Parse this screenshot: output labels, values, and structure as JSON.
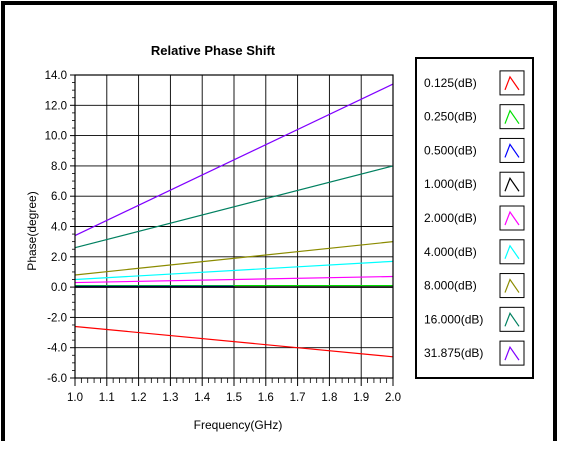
{
  "chart_data": {
    "type": "line",
    "title": "Relative Phase Shift",
    "xlabel": "Frequency(GHz)",
    "ylabel": "Phase(degree)",
    "xlim": [
      1.0,
      2.0
    ],
    "ylim": [
      -6.0,
      14.0
    ],
    "xticks": [
      "1.0",
      "1.1",
      "1.2",
      "1.3",
      "1.4",
      "1.5",
      "1.6",
      "1.7",
      "1.8",
      "1.9",
      "2.0"
    ],
    "yticks": [
      "-6.0",
      "-4.0",
      "-2.0",
      "0.0",
      "2.0",
      "4.0",
      "6.0",
      "8.0",
      "10.0",
      "12.0",
      "14.0"
    ],
    "grid": true,
    "legend_position": "right",
    "series": [
      {
        "name": "0.125(dB)",
        "color": "#ff0000",
        "x": [
          1.0,
          2.0
        ],
        "y": [
          -2.6,
          -4.6
        ]
      },
      {
        "name": "0.250(dB)",
        "color": "#00e000",
        "x": [
          1.0,
          2.0
        ],
        "y": [
          0.1,
          0.1
        ]
      },
      {
        "name": "0.500(dB)",
        "color": "#0000ff",
        "x": [
          1.0,
          1.5
        ],
        "y": [
          0.05,
          0.05
        ]
      },
      {
        "name": "1.000(dB)",
        "color": "#000000",
        "x": [
          1.0,
          2.0
        ],
        "y": [
          0.0,
          0.0
        ]
      },
      {
        "name": "2.000(dB)",
        "color": "#ff00ff",
        "x": [
          1.0,
          2.0
        ],
        "y": [
          0.3,
          0.7
        ]
      },
      {
        "name": "4.000(dB)",
        "color": "#00ffff",
        "x": [
          1.0,
          2.0
        ],
        "y": [
          0.5,
          1.7
        ]
      },
      {
        "name": "8.000(dB)",
        "color": "#8b8b00",
        "x": [
          1.0,
          2.0
        ],
        "y": [
          0.8,
          3.0
        ]
      },
      {
        "name": "16.000(dB)",
        "color": "#008060",
        "x": [
          1.0,
          2.0
        ],
        "y": [
          2.6,
          8.0
        ]
      },
      {
        "name": "31.875(dB)",
        "color": "#8000ff",
        "x": [
          1.0,
          2.0
        ],
        "y": [
          3.4,
          13.4
        ]
      }
    ]
  }
}
